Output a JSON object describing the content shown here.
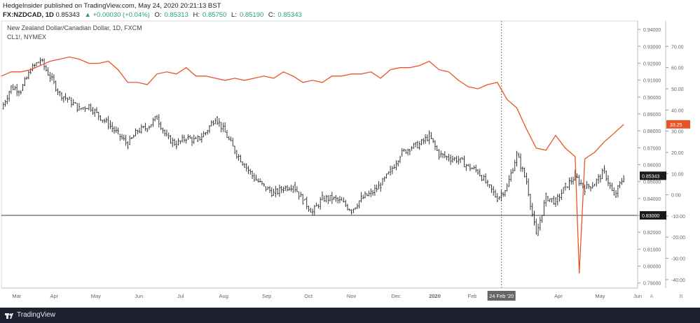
{
  "header": {
    "publisher_line": "HedgeInsider published on TradingView.com, May 24, 2020 20:21:13 BST",
    "symbol": "FX:NZDCAD, 1D",
    "price": "0.85343",
    "change": "▲ +0.00030 (+0.04%)",
    "ohlc": [
      {
        "label": "O:",
        "value": "0.85313"
      },
      {
        "label": "H:",
        "value": "0.85750"
      },
      {
        "label": "L:",
        "value": "0.85190"
      },
      {
        "label": "C:",
        "value": "0.85343"
      }
    ]
  },
  "footer": {
    "brand": "TradingView",
    "logo_icon": "tradingview-logo-icon"
  },
  "colors": {
    "price_bars": "#222222",
    "crude_line": "#e8542a",
    "axis_text": "#666666",
    "background": "#ffffff",
    "footer_bg": "#1e2230"
  },
  "chart_data": {
    "type": "line",
    "title": "New Zealand Dollar/Canadian Dollar, 1D, FXCM",
    "subtitle": "CL1!, NYMEX",
    "x_labels": [
      "Mar",
      "Apr",
      "May",
      "Jun",
      "Jul",
      "Aug",
      "Sep",
      "Oct",
      "Nov",
      "Dec",
      "2020",
      "Feb",
      "24 Feb '20",
      "Apr",
      "May",
      "Jun"
    ],
    "x_range": [
      "2019-03-01",
      "2020-06-01"
    ],
    "y_left_ticks": [
      "0.94000",
      "0.93000",
      "0.92000",
      "0.91000",
      "0.90000",
      "0.89000",
      "0.88000",
      "0.87000",
      "0.86000",
      "0.85000",
      "0.84000",
      "0.83000",
      "0.82000",
      "0.81000",
      "0.80000",
      "0.79000"
    ],
    "y_left_range": [
      0.787,
      0.945
    ],
    "y_right_ticks": [
      "70.00",
      "60.00",
      "50.00",
      "40.00",
      "30.00",
      "20.00",
      "10.00",
      "0.00",
      "-10.00",
      "-20.00",
      "-30.00",
      "-40.00"
    ],
    "y_right_range": [
      -44,
      82
    ],
    "axis_side_buttons": [
      "A",
      "B"
    ],
    "horizontal_line": {
      "value": 0.83,
      "label": "0.83000"
    },
    "vertical_marker": {
      "date": "2020-02-24",
      "label": "24 Feb '20"
    },
    "last_value_labels": [
      {
        "series": "CL1!",
        "value": "33.25"
      },
      {
        "series": "NZDCAD",
        "value": "0.85343"
      }
    ],
    "series": [
      {
        "symbol": "NZDCAD",
        "style": "bars",
        "points": [
          [
            "2019-03-01",
            0.893
          ],
          [
            "2019-03-08",
            0.906
          ],
          [
            "2019-03-15",
            0.904
          ],
          [
            "2019-03-22",
            0.916
          ],
          [
            "2019-03-29",
            0.922
          ],
          [
            "2019-04-05",
            0.912
          ],
          [
            "2019-04-12",
            0.902
          ],
          [
            "2019-04-19",
            0.898
          ],
          [
            "2019-04-26",
            0.893
          ],
          [
            "2019-05-03",
            0.895
          ],
          [
            "2019-05-10",
            0.889
          ],
          [
            "2019-05-17",
            0.884
          ],
          [
            "2019-05-24",
            0.878
          ],
          [
            "2019-05-31",
            0.872
          ],
          [
            "2019-06-07",
            0.88
          ],
          [
            "2019-06-14",
            0.882
          ],
          [
            "2019-06-21",
            0.888
          ],
          [
            "2019-06-28",
            0.876
          ],
          [
            "2019-07-05",
            0.872
          ],
          [
            "2019-07-12",
            0.876
          ],
          [
            "2019-07-19",
            0.874
          ],
          [
            "2019-07-26",
            0.879
          ],
          [
            "2019-08-02",
            0.888
          ],
          [
            "2019-08-09",
            0.879
          ],
          [
            "2019-08-16",
            0.868
          ],
          [
            "2019-08-23",
            0.86
          ],
          [
            "2019-08-30",
            0.852
          ],
          [
            "2019-09-06",
            0.847
          ],
          [
            "2019-09-13",
            0.843
          ],
          [
            "2019-09-20",
            0.846
          ],
          [
            "2019-09-27",
            0.848
          ],
          [
            "2019-10-04",
            0.839
          ],
          [
            "2019-10-11",
            0.832
          ],
          [
            "2019-10-18",
            0.84
          ],
          [
            "2019-10-25",
            0.84
          ],
          [
            "2019-11-01",
            0.838
          ],
          [
            "2019-11-08",
            0.833
          ],
          [
            "2019-11-15",
            0.84
          ],
          [
            "2019-11-22",
            0.843
          ],
          [
            "2019-11-29",
            0.848
          ],
          [
            "2019-12-06",
            0.856
          ],
          [
            "2019-12-13",
            0.866
          ],
          [
            "2019-12-20",
            0.87
          ],
          [
            "2019-12-27",
            0.872
          ],
          [
            "2020-01-03",
            0.877
          ],
          [
            "2020-01-10",
            0.866
          ],
          [
            "2020-01-17",
            0.864
          ],
          [
            "2020-01-24",
            0.863
          ],
          [
            "2020-01-31",
            0.859
          ],
          [
            "2020-02-07",
            0.856
          ],
          [
            "2020-02-14",
            0.848
          ],
          [
            "2020-02-21",
            0.84
          ],
          [
            "2020-02-28",
            0.847
          ],
          [
            "2020-03-06",
            0.866
          ],
          [
            "2020-03-13",
            0.85
          ],
          [
            "2020-03-20",
            0.818
          ],
          [
            "2020-03-27",
            0.841
          ],
          [
            "2020-04-03",
            0.838
          ],
          [
            "2020-04-10",
            0.847
          ],
          [
            "2020-04-17",
            0.853
          ],
          [
            "2020-04-24",
            0.846
          ],
          [
            "2020-05-01",
            0.849
          ],
          [
            "2020-05-08",
            0.856
          ],
          [
            "2020-05-15",
            0.841
          ],
          [
            "2020-05-22",
            0.853
          ]
        ]
      },
      {
        "symbol": "CL1!",
        "style": "line",
        "points": [
          [
            "2019-03-01",
            56
          ],
          [
            "2019-03-08",
            58
          ],
          [
            "2019-03-15",
            58
          ],
          [
            "2019-03-22",
            59
          ],
          [
            "2019-03-29",
            61
          ],
          [
            "2019-04-05",
            63
          ],
          [
            "2019-04-12",
            64
          ],
          [
            "2019-04-19",
            65
          ],
          [
            "2019-04-26",
            64
          ],
          [
            "2019-05-03",
            62
          ],
          [
            "2019-05-10",
            62
          ],
          [
            "2019-05-17",
            63
          ],
          [
            "2019-05-24",
            59
          ],
          [
            "2019-05-31",
            53
          ],
          [
            "2019-06-07",
            53
          ],
          [
            "2019-06-14",
            52
          ],
          [
            "2019-06-21",
            57
          ],
          [
            "2019-06-28",
            58
          ],
          [
            "2019-07-05",
            57
          ],
          [
            "2019-07-12",
            60
          ],
          [
            "2019-07-19",
            56
          ],
          [
            "2019-07-26",
            56
          ],
          [
            "2019-08-02",
            55
          ],
          [
            "2019-08-09",
            54
          ],
          [
            "2019-08-16",
            55
          ],
          [
            "2019-08-23",
            54
          ],
          [
            "2019-08-30",
            55
          ],
          [
            "2019-09-06",
            56
          ],
          [
            "2019-09-13",
            55
          ],
          [
            "2019-09-20",
            58
          ],
          [
            "2019-09-27",
            56
          ],
          [
            "2019-10-04",
            53
          ],
          [
            "2019-10-11",
            54
          ],
          [
            "2019-10-18",
            53
          ],
          [
            "2019-10-25",
            56
          ],
          [
            "2019-11-01",
            56
          ],
          [
            "2019-11-08",
            57
          ],
          [
            "2019-11-15",
            57
          ],
          [
            "2019-11-22",
            58
          ],
          [
            "2019-11-29",
            55
          ],
          [
            "2019-12-06",
            59
          ],
          [
            "2019-12-13",
            60
          ],
          [
            "2019-12-20",
            60
          ],
          [
            "2019-12-27",
            61
          ],
          [
            "2020-01-03",
            63
          ],
          [
            "2020-01-10",
            59
          ],
          [
            "2020-01-17",
            58
          ],
          [
            "2020-01-24",
            54
          ],
          [
            "2020-01-31",
            51
          ],
          [
            "2020-02-07",
            50
          ],
          [
            "2020-02-14",
            52
          ],
          [
            "2020-02-21",
            53
          ],
          [
            "2020-02-28",
            45
          ],
          [
            "2020-03-06",
            41
          ],
          [
            "2020-03-13",
            31
          ],
          [
            "2020-03-20",
            22
          ],
          [
            "2020-03-27",
            21
          ],
          [
            "2020-04-03",
            28
          ],
          [
            "2020-04-10",
            22
          ],
          [
            "2020-04-17",
            18
          ],
          [
            "2020-04-20",
            -37
          ],
          [
            "2020-04-24",
            17
          ],
          [
            "2020-05-01",
            20
          ],
          [
            "2020-05-08",
            25
          ],
          [
            "2020-05-15",
            29
          ],
          [
            "2020-05-22",
            33.25
          ]
        ]
      }
    ]
  }
}
